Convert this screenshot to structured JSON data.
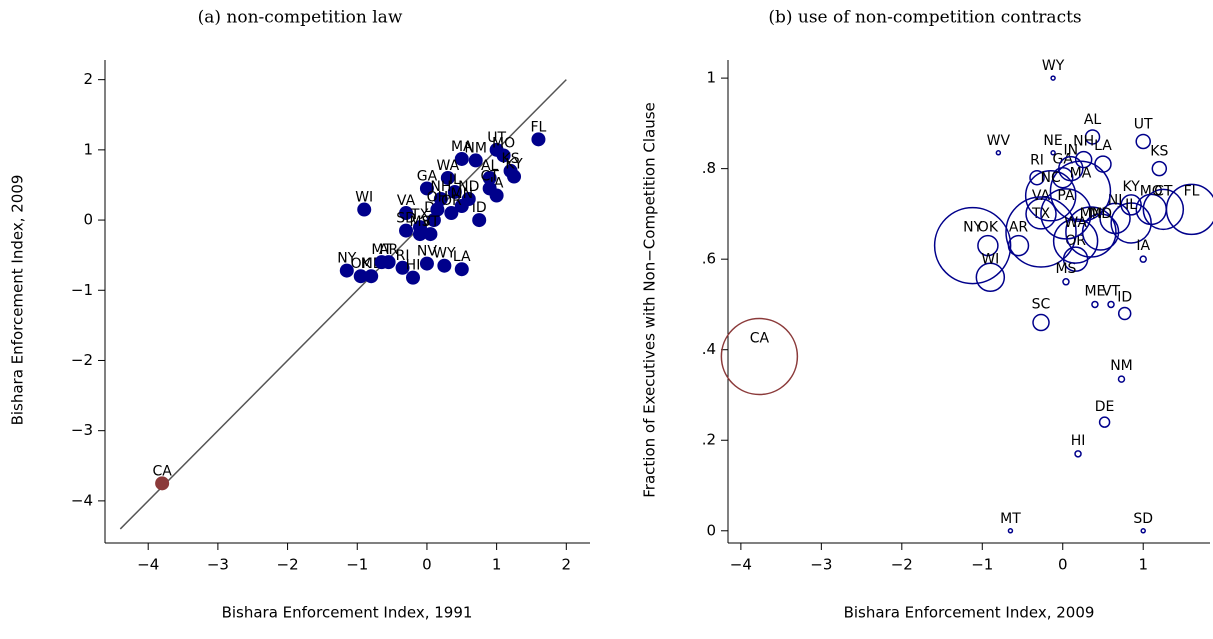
{
  "chart_data": [
    {
      "type": "scatter",
      "title": "(a) non-competition law",
      "xlabel": "Bishara Enforcement Index, 1991",
      "ylabel": "Bishara Enforcement Index, 2009",
      "labels": [
        "CA",
        "WI",
        "NY",
        "OK",
        "ME",
        "MT",
        "AR",
        "RI",
        "HI",
        "NV",
        "WY",
        "LA",
        "VA",
        "SD",
        "TX",
        "DE",
        "GA",
        "MA",
        "NM",
        "WA",
        "UT",
        "MO",
        "KS",
        "KY",
        "ID",
        "ND",
        "IL",
        "NH",
        "AL",
        "IA",
        "MN",
        "OH",
        "CT",
        "OR",
        "VT",
        "MS",
        "FL"
      ],
      "x": [
        -3.8,
        -0.9,
        -1.15,
        -0.95,
        -0.8,
        -0.65,
        -0.55,
        -0.35,
        -0.2,
        0.0,
        0.25,
        0.5,
        -0.3,
        -0.3,
        -0.1,
        0.1,
        0.0,
        0.5,
        0.7,
        0.3,
        1.0,
        1.1,
        1.2,
        1.25,
        0.75,
        0.6,
        0.4,
        0.2,
        0.9,
        1.0,
        0.5,
        0.15,
        0.9,
        0.35,
        0.05,
        -0.1,
        1.6
      ],
      "values": [
        -3.75,
        0.15,
        -0.72,
        -0.8,
        -0.8,
        -0.6,
        -0.6,
        -0.68,
        -0.82,
        -0.62,
        -0.65,
        -0.7,
        0.1,
        -0.15,
        -0.1,
        0.0,
        0.45,
        0.87,
        0.85,
        0.6,
        1.0,
        0.92,
        0.7,
        0.62,
        0.0,
        0.3,
        0.4,
        0.3,
        0.6,
        0.35,
        0.2,
        0.15,
        0.45,
        0.1,
        -0.2,
        -0.2,
        1.15
      ],
      "colors": [
        "#8b3a3a",
        "#00008b",
        "#00008b",
        "#00008b",
        "#00008b",
        "#00008b",
        "#00008b",
        "#00008b",
        "#00008b",
        "#00008b",
        "#00008b",
        "#00008b",
        "#00008b",
        "#00008b",
        "#00008b",
        "#00008b",
        "#00008b",
        "#00008b",
        "#00008b",
        "#00008b",
        "#00008b",
        "#00008b",
        "#00008b",
        "#00008b",
        "#00008b",
        "#00008b",
        "#00008b",
        "#00008b",
        "#00008b",
        "#00008b",
        "#00008b",
        "#00008b",
        "#00008b",
        "#00008b",
        "#00008b",
        "#00008b",
        "#00008b"
      ],
      "diagonal": [
        -4.4,
        2
      ],
      "xlim": [
        -4.62,
        2.34
      ],
      "ylim": [
        -4.6,
        2.28
      ],
      "xticks": [
        {
          "value": -4,
          "label": "−4"
        },
        {
          "value": -3,
          "label": "−3"
        },
        {
          "value": -2,
          "label": "−2"
        },
        {
          "value": -1,
          "label": "−1"
        },
        0,
        1,
        2
      ],
      "yticks": [
        {
          "value": -4,
          "label": "−4"
        },
        {
          "value": -3,
          "label": "−3"
        },
        {
          "value": -2,
          "label": "−2"
        },
        {
          "value": -1,
          "label": "−1"
        },
        0,
        1,
        2
      ]
    },
    {
      "type": "bubble",
      "title": "(b) use of non-competition contracts",
      "xlabel": "Bishara Enforcement Index, 2009",
      "ylabel": "Fraction of Executives with Non−Competition Clause",
      "labels": [
        "CA",
        "WY",
        "WV",
        "NE",
        "AL",
        "UT",
        "KS",
        "NH",
        "LA",
        "RI",
        "GA",
        "KY",
        "MO",
        "FL",
        "CT",
        "NJ",
        "IL",
        "VA",
        "TX",
        "NY",
        "OK",
        "AR",
        "WI",
        "OR",
        "MS",
        "ME",
        "VT",
        "IA",
        "ID",
        "SC",
        "NM",
        "DE",
        "HI",
        "MT",
        "SD",
        "PA",
        "MA",
        "MN",
        "NC",
        "MD",
        "WA",
        "IN"
      ],
      "x": [
        -3.77,
        -0.12,
        -0.8,
        -0.12,
        0.37,
        1.0,
        1.2,
        0.26,
        0.5,
        -0.32,
        0.0,
        0.85,
        1.1,
        1.6,
        1.25,
        0.65,
        0.85,
        -0.27,
        -0.27,
        -1.12,
        -0.93,
        -0.55,
        -0.9,
        0.16,
        0.04,
        0.4,
        0.6,
        1.0,
        0.77,
        -0.27,
        0.73,
        0.52,
        0.19,
        -0.65,
        1.0,
        0.04,
        0.22,
        0.35,
        -0.15,
        0.47,
        0.16,
        0.1
      ],
      "values": [
        0.385,
        1.0,
        0.835,
        0.835,
        0.87,
        0.86,
        0.8,
        0.82,
        0.81,
        0.78,
        0.78,
        0.72,
        0.71,
        0.71,
        0.71,
        0.69,
        0.68,
        0.7,
        0.66,
        0.63,
        0.63,
        0.63,
        0.56,
        0.6,
        0.55,
        0.5,
        0.5,
        0.6,
        0.48,
        0.46,
        0.335,
        0.24,
        0.17,
        0.0,
        0.0,
        0.7,
        0.75,
        0.66,
        0.74,
        0.66,
        0.64,
        0.8
      ],
      "sizes": [
        38,
        2,
        2,
        2,
        7,
        7,
        7,
        8,
        8,
        7,
        10,
        10,
        15,
        25,
        20,
        15,
        20,
        15,
        35,
        38,
        10,
        10,
        14,
        12,
        3,
        3,
        3,
        3,
        6,
        8,
        3,
        5,
        3,
        2,
        2,
        25,
        30,
        25,
        25,
        18,
        22,
        12
      ],
      "colors": [
        "#8b3a3a",
        "#00008b",
        "#00008b",
        "#00008b",
        "#00008b",
        "#00008b",
        "#00008b",
        "#00008b",
        "#00008b",
        "#00008b",
        "#00008b",
        "#00008b",
        "#00008b",
        "#00008b",
        "#00008b",
        "#00008b",
        "#00008b",
        "#00008b",
        "#00008b",
        "#00008b",
        "#00008b",
        "#00008b",
        "#00008b",
        "#00008b",
        "#00008b",
        "#00008b",
        "#00008b",
        "#00008b",
        "#00008b",
        "#00008b",
        "#00008b",
        "#00008b",
        "#00008b",
        "#00008b",
        "#00008b",
        "#00008b",
        "#00008b",
        "#00008b",
        "#00008b",
        "#00008b",
        "#00008b",
        "#00008b"
      ],
      "xlim": [
        -4.16,
        1.83
      ],
      "ylim": [
        -0.027,
        1.04
      ],
      "xticks": [
        {
          "value": -4,
          "label": "−4"
        },
        {
          "value": -3,
          "label": "−3"
        },
        {
          "value": -2,
          "label": "−2"
        },
        {
          "value": -1,
          "label": "−1"
        },
        0,
        1
      ],
      "yticks": [
        0,
        {
          "value": 0.2,
          "label": ".2"
        },
        {
          "value": 0.4,
          "label": ".4"
        },
        {
          "value": 0.6,
          "label": ".6"
        },
        {
          "value": 0.8,
          "label": ".8"
        },
        1
      ]
    }
  ]
}
